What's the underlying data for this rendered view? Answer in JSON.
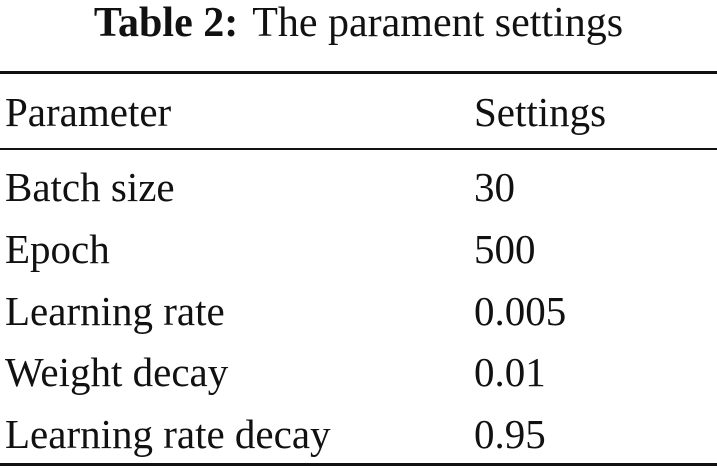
{
  "caption": {
    "label": "Table 2:",
    "text": "The parament settings"
  },
  "table": {
    "header": [
      "Parameter",
      "Settings"
    ],
    "rows": [
      [
        "Batch size",
        "30"
      ],
      [
        "Epoch",
        "500"
      ],
      [
        "Learning rate",
        "0.005"
      ],
      [
        "Weight decay",
        "0.01"
      ],
      [
        "Learning rate decay",
        "0.95"
      ]
    ]
  }
}
